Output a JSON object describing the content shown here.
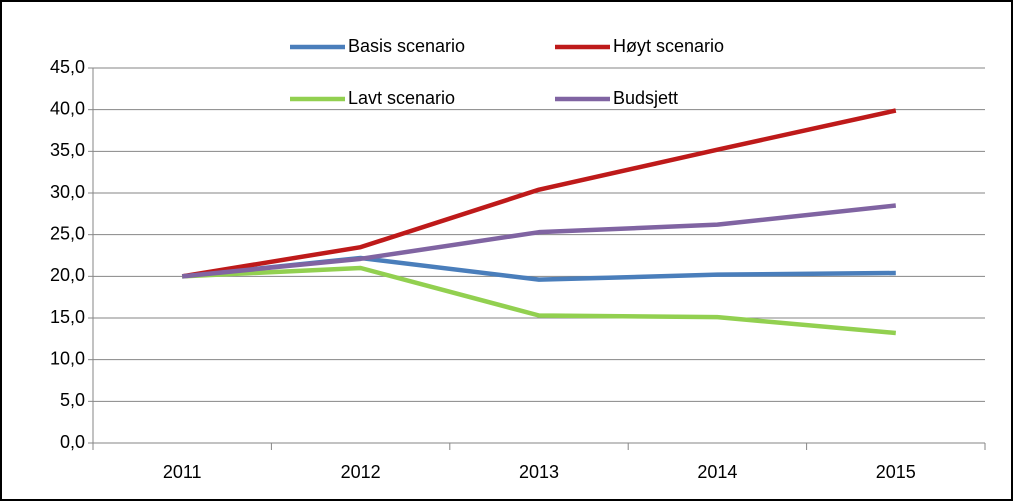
{
  "chart_data": {
    "type": "line",
    "categories": [
      "2011",
      "2012",
      "2013",
      "2014",
      "2015"
    ],
    "series": [
      {
        "name": "Basis scenario",
        "color": "#4a7ebb",
        "values": [
          20.0,
          22.2,
          19.6,
          20.2,
          20.4
        ]
      },
      {
        "name": "Høyt scenario",
        "color": "#be1a1a",
        "values": [
          20.0,
          23.5,
          30.4,
          35.2,
          39.9
        ]
      },
      {
        "name": "Lavt scenario",
        "color": "#92d050",
        "values": [
          20.0,
          21.0,
          15.3,
          15.1,
          13.2
        ]
      },
      {
        "name": "Budsjett",
        "color": "#8064a2",
        "values": [
          20.0,
          22.1,
          25.3,
          26.2,
          28.5
        ]
      }
    ],
    "ylim": [
      0,
      45
    ],
    "yticks": [
      {
        "value": 0,
        "label": "0,0"
      },
      {
        "value": 5,
        "label": "5,0"
      },
      {
        "value": 10,
        "label": "10,0"
      },
      {
        "value": 15,
        "label": "15,0"
      },
      {
        "value": 20,
        "label": "20,0"
      },
      {
        "value": 25,
        "label": "25,0"
      },
      {
        "value": 30,
        "label": "30,0"
      },
      {
        "value": 35,
        "label": "35,0"
      },
      {
        "value": 40,
        "label": "40,0"
      },
      {
        "value": 45,
        "label": "45,0"
      }
    ],
    "grid": true,
    "legend": "top"
  }
}
